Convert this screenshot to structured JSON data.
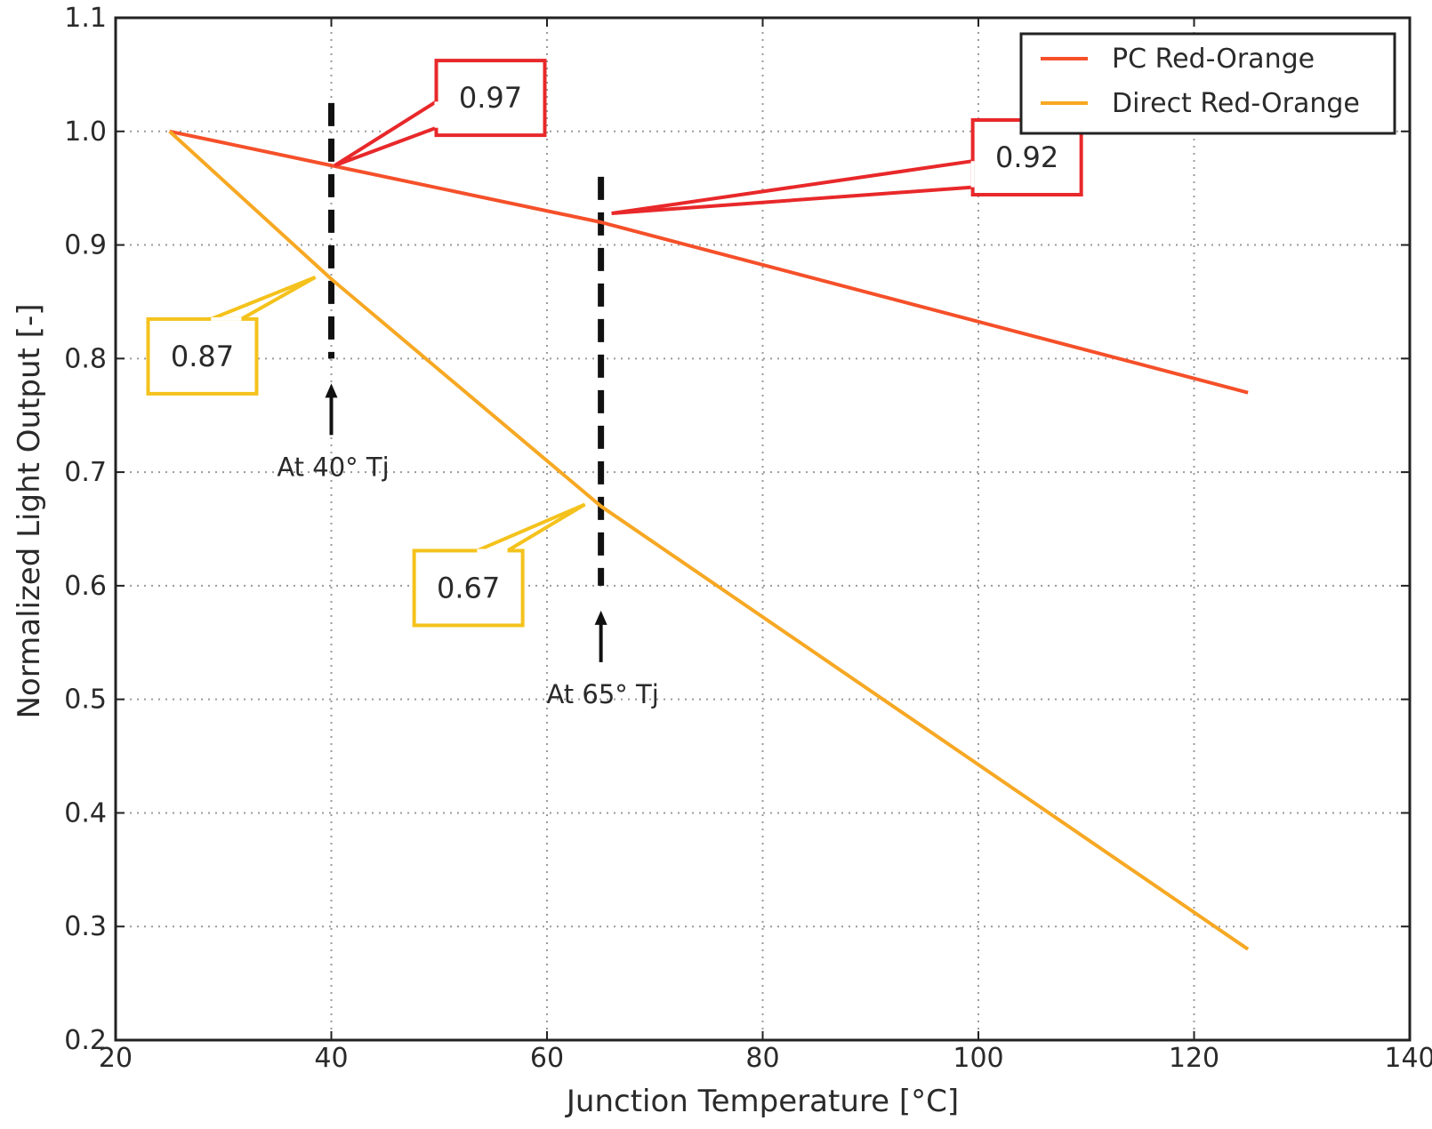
{
  "chart_data": {
    "type": "line",
    "xlabel": "Junction Temperature [°C]",
    "ylabel": "Normalized Light Output [-]",
    "xlim": [
      20,
      140
    ],
    "ylim": [
      0.2,
      1.1
    ],
    "xticks": [
      "20",
      "40",
      "60",
      "80",
      "100",
      "120",
      "140"
    ],
    "yticks": [
      "0.2",
      "0.3",
      "0.4",
      "0.5",
      "0.6",
      "0.7",
      "0.8",
      "0.9",
      "1.0",
      "1.1"
    ],
    "grid": true,
    "legend_position": "top-right",
    "series": [
      {
        "name": "PC Red-Orange",
        "color": "#f5502a",
        "x": [
          25,
          40,
          65,
          125
        ],
        "y": [
          1.0,
          0.97,
          0.92,
          0.77
        ]
      },
      {
        "name": "Direct Red-Orange",
        "color": "#f7a823",
        "x": [
          25,
          40,
          65,
          125
        ],
        "y": [
          1.0,
          0.87,
          0.67,
          0.28
        ]
      }
    ],
    "annotations": [
      {
        "text": "0.97",
        "color": "#e8282a",
        "x": 40,
        "y": 0.97
      },
      {
        "text": "0.92",
        "color": "#e8282a",
        "x": 65,
        "y": 0.92
      },
      {
        "text": "0.87",
        "color": "#f4c21c",
        "x": 40,
        "y": 0.87
      },
      {
        "text": "0.67",
        "color": "#f4c21c",
        "x": 65,
        "y": 0.67
      }
    ],
    "markers": [
      {
        "label": "At 40° Tj",
        "x": 40
      },
      {
        "label": "At 65° Tj",
        "x": 65
      }
    ]
  }
}
